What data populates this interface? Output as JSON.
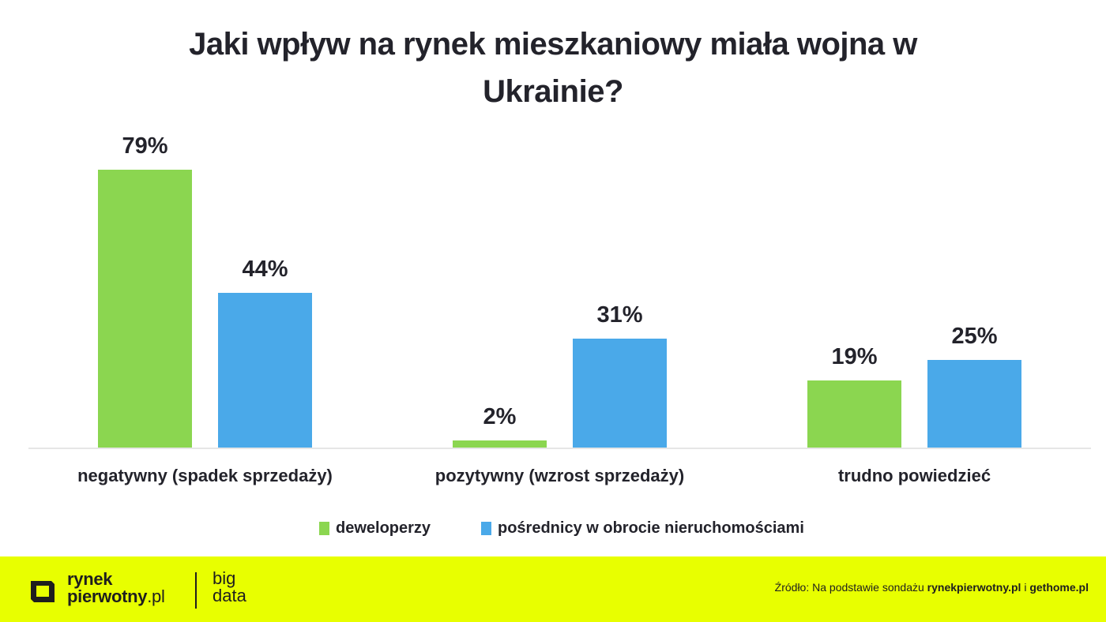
{
  "title": "Jaki wpływ na rynek mieszkaniowy miała wojna w Ukrainie?",
  "title_lines": [
    "Jaki wpływ na rynek mieszkaniowy miała wojna w",
    "Ukrainie?"
  ],
  "colors": {
    "deweloperzy": "#8bd650",
    "posrednicy": "#4aa9e9",
    "footer_bg": "#e8ff00",
    "text": "#23232b"
  },
  "chart_data": {
    "type": "bar",
    "title": "Jaki wpływ na rynek mieszkaniowy miała wojna w Ukrainie?",
    "categories": [
      "negatywny (spadek sprzedaży)",
      "pozytywny (wzrost sprzedaży)",
      "trudno powiedzieć"
    ],
    "series": [
      {
        "name": "deweloperzy",
        "values": [
          79,
          2,
          19
        ],
        "color": "#8bd650"
      },
      {
        "name": "pośrednicy w obrocie nieruchomościami",
        "values": [
          44,
          31,
          25
        ],
        "color": "#4aa9e9"
      }
    ],
    "value_labels": [
      [
        "79%",
        "2%",
        "19%"
      ],
      [
        "44%",
        "31%",
        "25%"
      ]
    ],
    "xlabel": "",
    "ylabel": "",
    "ylim": [
      0,
      80
    ],
    "grid": false,
    "legend_position": "bottom",
    "unit": "%"
  },
  "legend": {
    "items": [
      {
        "label": "deweloperzy"
      },
      {
        "label": "pośrednicy w obrocie nieruchomościami"
      }
    ]
  },
  "footer": {
    "logo_line1": "rynek",
    "logo_line2": "pierwotny",
    "logo_suffix": ".pl",
    "bigdata_line1": "big",
    "bigdata_line2": "data",
    "source_prefix": "Źródło: Na podstawie sondażu ",
    "source_site1": "rynekpierwotny.pl",
    "source_join": " i ",
    "source_site2": "gethome.pl"
  }
}
